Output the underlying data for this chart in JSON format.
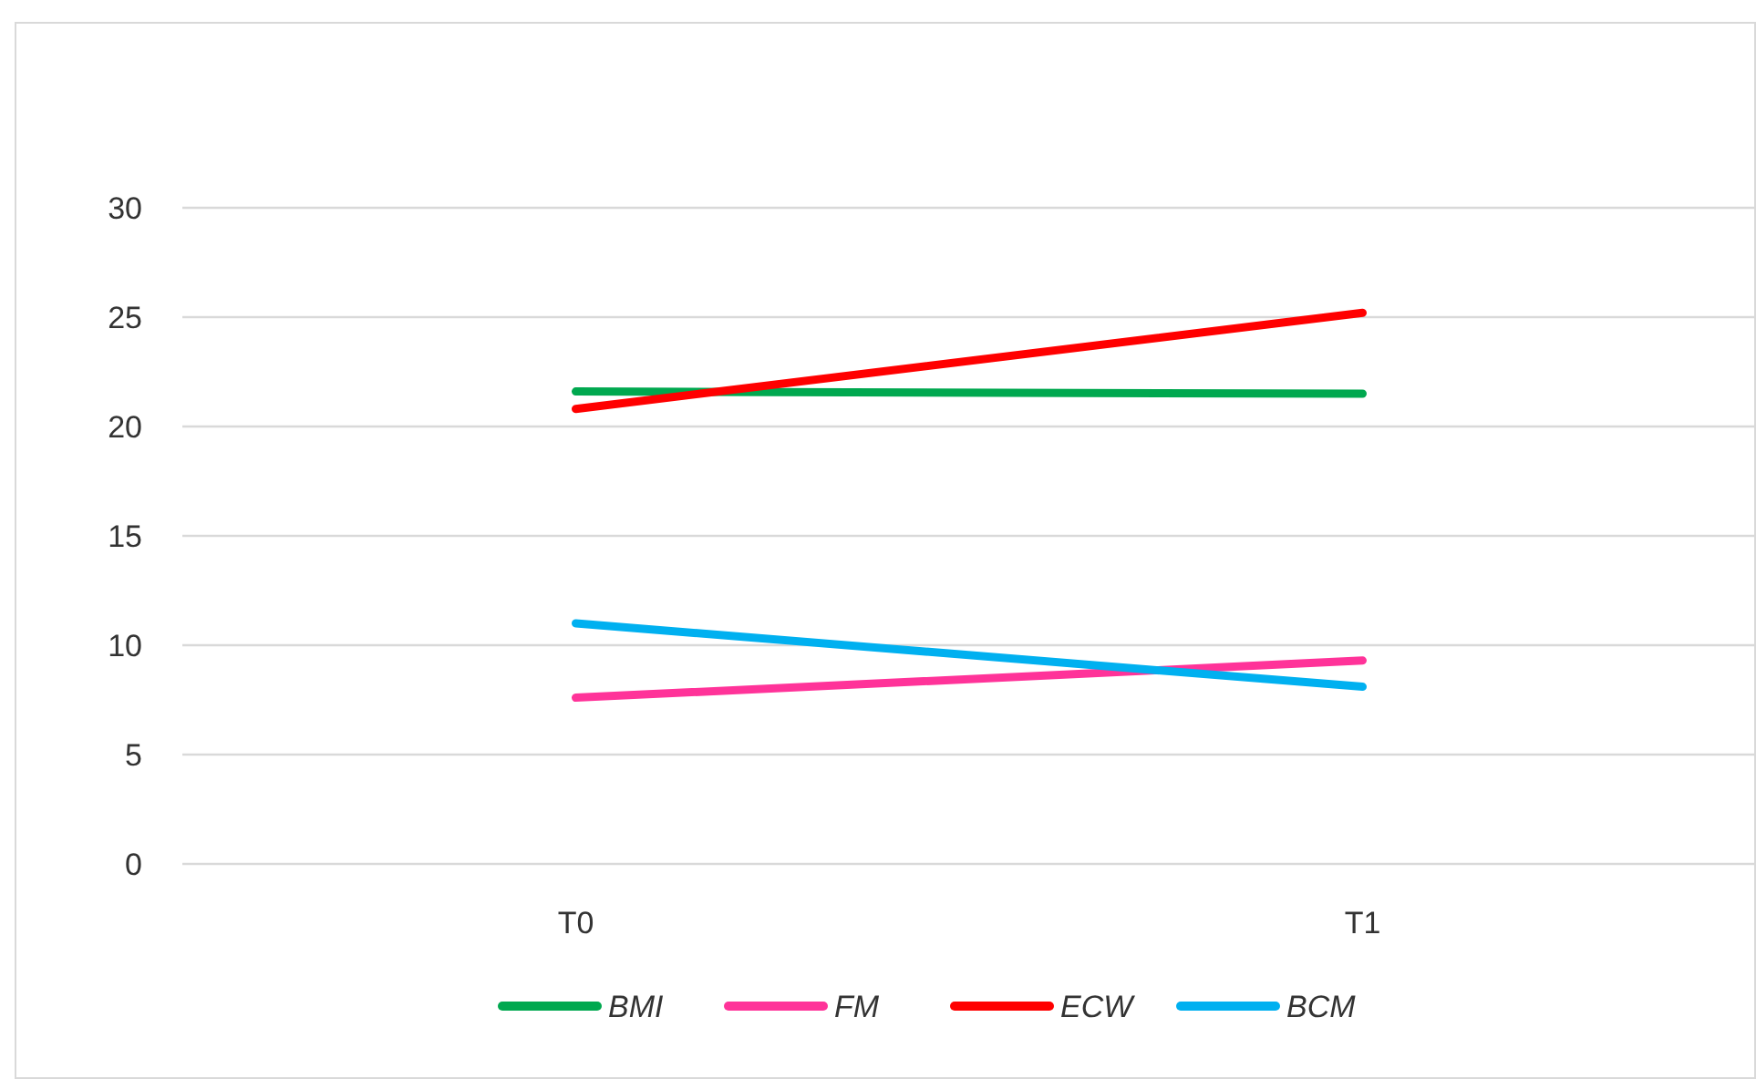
{
  "chart_data": {
    "type": "line",
    "categories": [
      "T0",
      "T1"
    ],
    "series": [
      {
        "name": "BMI",
        "color": "#00a84f",
        "values": [
          21.6,
          21.5
        ]
      },
      {
        "name": "FM",
        "color": "#ff3399",
        "values": [
          7.6,
          9.3
        ]
      },
      {
        "name": "ECW",
        "color": "#ff0000",
        "values": [
          20.8,
          25.2
        ]
      },
      {
        "name": "BCM",
        "color": "#00b0f0",
        "values": [
          11.0,
          8.1
        ]
      }
    ],
    "ylim": [
      0,
      30
    ],
    "yticks": [
      0,
      5,
      10,
      15,
      20,
      25,
      30
    ],
    "grid": "y",
    "legend": "bottom",
    "marker": "none",
    "line_style": "solid"
  }
}
